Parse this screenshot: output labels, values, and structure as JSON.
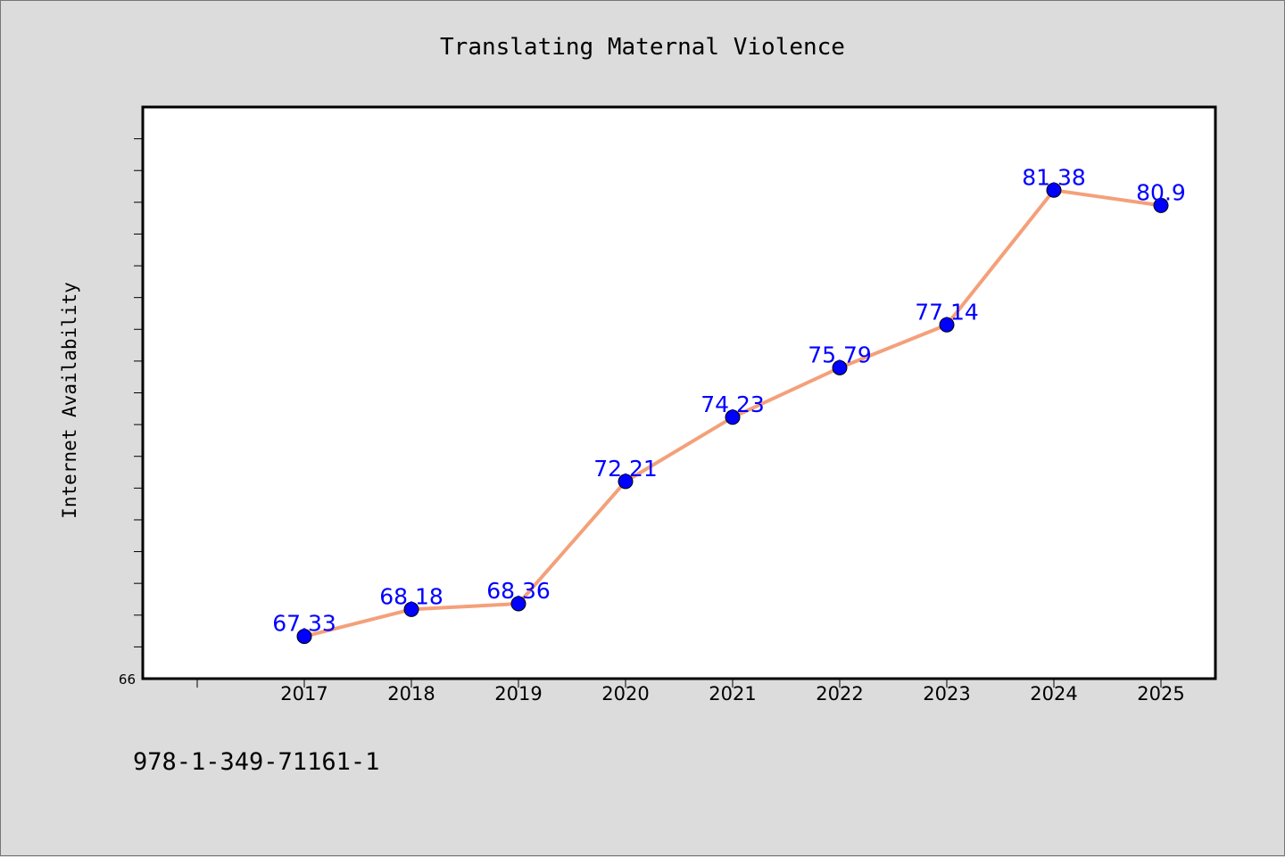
{
  "chart_data": {
    "type": "line",
    "title": "Translating Maternal Violence",
    "xlabel": "",
    "ylabel": "Internet Availability",
    "categories": [
      "2017",
      "2018",
      "2019",
      "2020",
      "2021",
      "2022",
      "2023",
      "2024",
      "2025"
    ],
    "series": [
      {
        "values": [
          67.33,
          68.18,
          68.36,
          72.21,
          74.23,
          75.79,
          77.14,
          81.38,
          80.9
        ],
        "data_labels": [
          "67.33",
          "68.18",
          "68.36",
          "72.21",
          "74.23",
          "75.79",
          "77.14",
          "81.38",
          "80.9"
        ]
      }
    ],
    "y_tick_labels": [
      "66"
    ],
    "ylim": [
      66,
      84
    ],
    "grid": false,
    "line_color": "#f4a07a",
    "marker_color": "#0000ff",
    "label_color": "#0000ff"
  },
  "footer": {
    "isbn": "978-1-349-71161-1"
  }
}
